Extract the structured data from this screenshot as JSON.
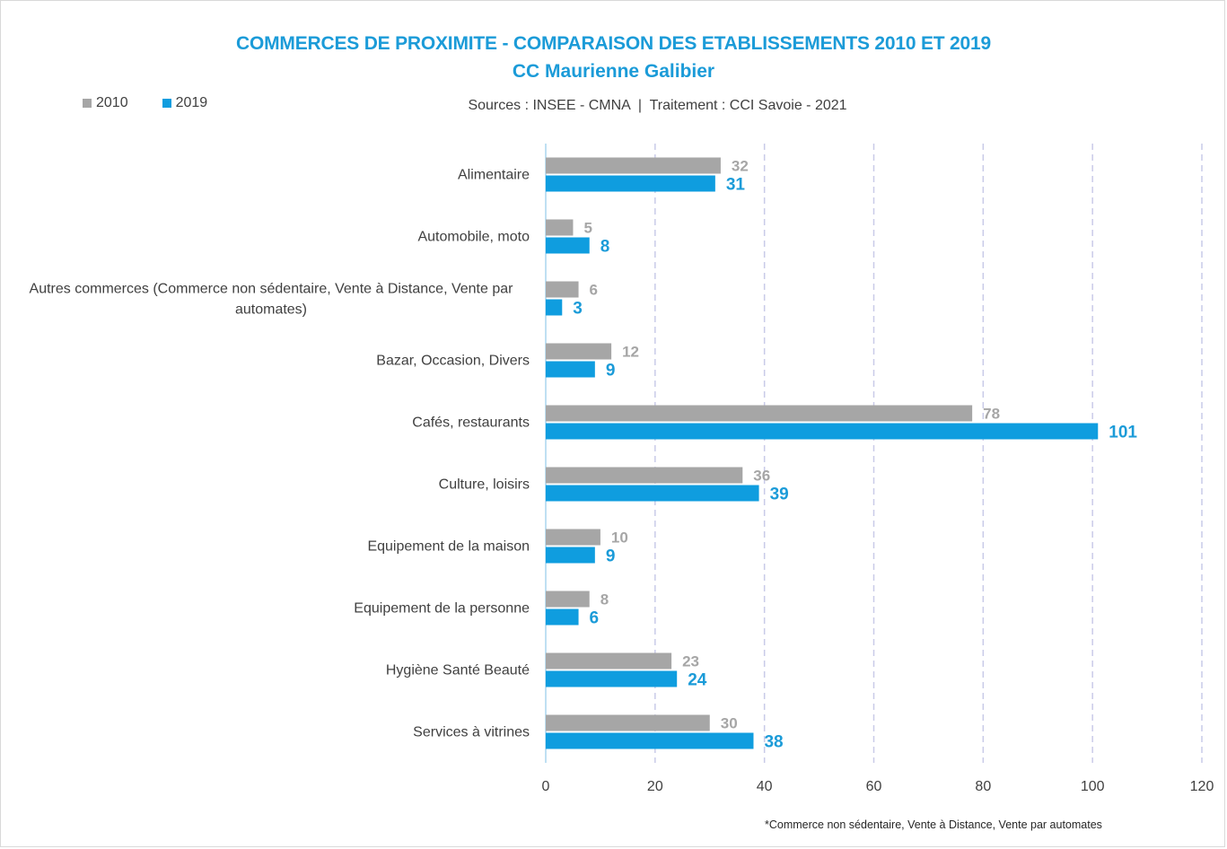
{
  "chart_data": {
    "type": "bar",
    "orientation": "horizontal",
    "title": "COMMERCES DE PROXIMITE - COMPARAISON DES ETABLISSEMENTS 2010 ET 2019",
    "subtitle": "CC Maurienne Galibier",
    "source": "Sources : INSEE - CMNA  |  Traitement : CCI Savoie - 2021",
    "footnote": "*Commerce non sédentaire, Vente à Distance, Vente par automates",
    "categories": [
      "Alimentaire",
      "Automobile, moto",
      "Autres commerces (Commerce non sédentaire, Vente à Distance, Vente par automates)",
      "Bazar, Occasion, Divers",
      "Cafés, restaurants",
      "Culture, loisirs",
      "Equipement de la maison",
      "Equipement de la personne",
      "Hygiène Santé Beauté",
      "Services à vitrines"
    ],
    "series": [
      {
        "name": "2010",
        "color": "#a6a6a6",
        "values": [
          32,
          5,
          6,
          12,
          78,
          36,
          10,
          8,
          23,
          30
        ]
      },
      {
        "name": "2019",
        "color": "#0f9ddf",
        "values": [
          31,
          8,
          3,
          9,
          101,
          39,
          9,
          6,
          24,
          38
        ]
      }
    ],
    "xlim": [
      0,
      120
    ],
    "xticks": [
      0,
      20,
      40,
      60,
      80,
      100,
      120
    ],
    "xlabel": "",
    "ylabel": "",
    "grid": true,
    "legend_position": "top-left"
  }
}
